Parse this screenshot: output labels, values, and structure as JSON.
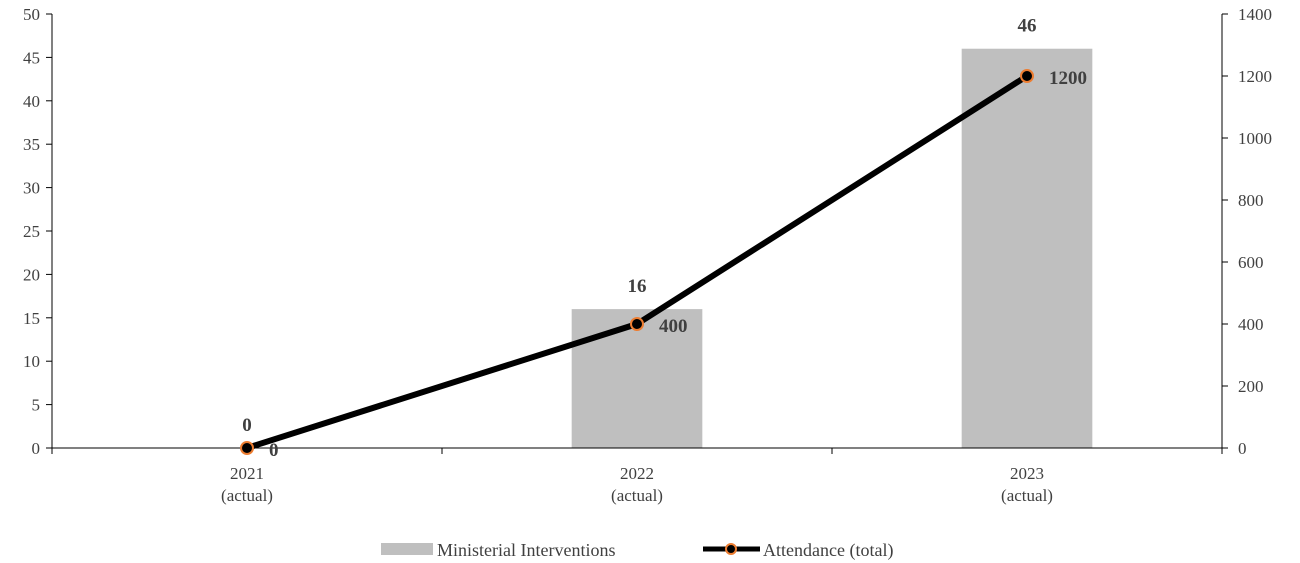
{
  "chart_data": {
    "type": "bar+line",
    "categories": [
      [
        "2021",
        "(actual)"
      ],
      [
        "2022",
        "(actual)"
      ],
      [
        "2023",
        "(actual)"
      ]
    ],
    "series": [
      {
        "name": "Ministerial Interventions",
        "type": "bar",
        "axis": "left",
        "values": [
          0,
          16,
          46
        ],
        "color": "#bfbfbf"
      },
      {
        "name": "Attendance (total)",
        "type": "line",
        "axis": "right",
        "values": [
          0,
          400,
          1200
        ],
        "color": "#000000",
        "marker_color": "#ed7d31"
      }
    ],
    "y_left": {
      "min": 0,
      "max": 50,
      "step": 5
    },
    "y_right": {
      "min": 0,
      "max": 1400,
      "step": 200
    },
    "legend": {
      "position": "bottom"
    },
    "grid": false
  }
}
